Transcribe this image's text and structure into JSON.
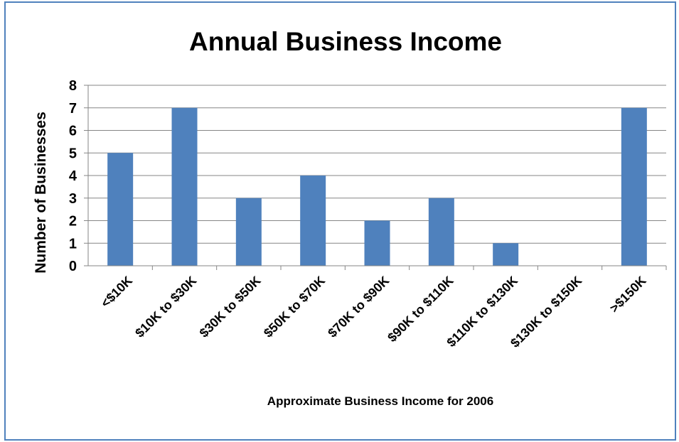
{
  "chart_data": {
    "type": "bar",
    "title": "Annual Business Income",
    "xlabel": "Approximate Business Income for 2006",
    "ylabel": "Number of Businesses",
    "categories": [
      "<$10K",
      "$10K to $30K",
      "$30K to $50K",
      "$50K to $70K",
      "$70K to $90K",
      "$90K to $110K",
      "$110K to $130K",
      "$130K to $150K",
      ">$150K"
    ],
    "values": [
      5,
      7,
      3,
      4,
      2,
      3,
      1,
      0,
      7
    ],
    "ylim": [
      0,
      8
    ],
    "yticks": [
      "0",
      "1",
      "2",
      "3",
      "4",
      "5",
      "6",
      "7",
      "8"
    ],
    "grid": true,
    "legend": "none",
    "colors": {
      "bar": "#4f81bd",
      "frame": "#4f81bd",
      "grid": "#868686"
    }
  }
}
